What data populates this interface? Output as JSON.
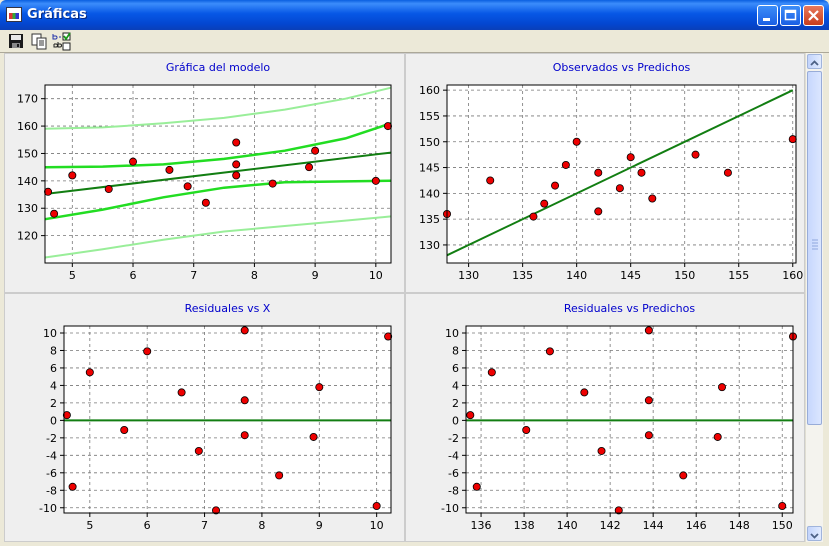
{
  "window": {
    "title": "Gráficas"
  },
  "toolbar": {
    "buttons": [
      "save-icon",
      "copy-icon",
      "labels-toggle-icon"
    ]
  },
  "colors": {
    "title_text": "#0000cc",
    "panel_bg": "#efefef",
    "border": "#cccccc",
    "point_fill": "#ee0000",
    "fit_line": "#127e12",
    "conf_band": "#22dd22",
    "pred_band": "#99ee99",
    "grid": "#777777"
  },
  "chart_data": [
    {
      "type": "scatter",
      "title": "Gráfica del modelo",
      "xlim": [
        4.55,
        10.25
      ],
      "ylim": [
        110,
        175
      ],
      "xticks": [
        5,
        6,
        7,
        8,
        9,
        10
      ],
      "yticks": [
        120,
        130,
        140,
        150,
        160,
        170
      ],
      "points": [
        [
          4.6,
          136
        ],
        [
          4.7,
          128
        ],
        [
          5.0,
          142
        ],
        [
          5.6,
          137
        ],
        [
          6.0,
          147
        ],
        [
          6.6,
          144
        ],
        [
          6.9,
          138
        ],
        [
          7.2,
          132
        ],
        [
          7.7,
          154
        ],
        [
          7.7,
          146
        ],
        [
          7.7,
          142
        ],
        [
          8.3,
          139
        ],
        [
          8.9,
          145
        ],
        [
          9.0,
          151
        ],
        [
          10.0,
          140
        ],
        [
          10.2,
          160
        ]
      ],
      "series": [
        {
          "role": "fit",
          "x": [
            4.55,
            10.25
          ],
          "y": [
            135.2,
            150.3
          ]
        },
        {
          "role": "conf-upper",
          "x": [
            4.55,
            5.5,
            6.5,
            7.5,
            8.5,
            9.5,
            10.25
          ],
          "y": [
            145,
            145.2,
            146,
            148,
            151,
            155.5,
            161
          ]
        },
        {
          "role": "conf-lower",
          "x": [
            4.55,
            5.5,
            6.5,
            7.5,
            8.5,
            9.5,
            10.25
          ],
          "y": [
            126,
            129.5,
            134,
            137.5,
            139.5,
            139.8,
            140
          ]
        },
        {
          "role": "pred-upper",
          "x": [
            4.55,
            5.5,
            6.5,
            7.5,
            8.5,
            9.5,
            10.25
          ],
          "y": [
            159,
            159.5,
            161,
            163,
            166,
            170,
            174
          ]
        },
        {
          "role": "pred-lower",
          "x": [
            4.55,
            5.5,
            6.5,
            7.5,
            8.5,
            9.5,
            10.25
          ],
          "y": [
            112,
            115,
            118.5,
            121.5,
            123.5,
            125.5,
            127
          ]
        }
      ]
    },
    {
      "type": "scatter",
      "title": "Observados vs Predichos",
      "xlim": [
        128,
        160.3
      ],
      "ylim": [
        126.5,
        161
      ],
      "xticks": [
        130,
        135,
        140,
        145,
        150,
        155,
        160
      ],
      "yticks": [
        130,
        135,
        140,
        145,
        150,
        155,
        160
      ],
      "points": [
        [
          128,
          136
        ],
        [
          132,
          142.5
        ],
        [
          136,
          135.5
        ],
        [
          137,
          138
        ],
        [
          138,
          141.5
        ],
        [
          139,
          145.5
        ],
        [
          140,
          150
        ],
        [
          142,
          136.5
        ],
        [
          142,
          144
        ],
        [
          144,
          141
        ],
        [
          145,
          147
        ],
        [
          146,
          144
        ],
        [
          147,
          139
        ],
        [
          151,
          147.5
        ],
        [
          154,
          144
        ],
        [
          160,
          150.5
        ]
      ],
      "series": [
        {
          "role": "identity",
          "x": [
            128,
            160
          ],
          "y": [
            128,
            160
          ]
        }
      ]
    },
    {
      "type": "scatter",
      "title": "Residuales vs X",
      "xlim": [
        4.55,
        10.25
      ],
      "ylim": [
        -10.6,
        10.8
      ],
      "xticks": [
        5,
        6,
        7,
        8,
        9,
        10
      ],
      "yticks": [
        -10,
        -8,
        -6,
        -4,
        -2,
        0,
        2,
        4,
        6,
        8,
        10
      ],
      "points": [
        [
          4.6,
          0.6
        ],
        [
          4.7,
          -7.6
        ],
        [
          5.0,
          5.5
        ],
        [
          5.6,
          -1.1
        ],
        [
          6.0,
          7.9
        ],
        [
          6.6,
          3.2
        ],
        [
          6.9,
          -3.5
        ],
        [
          7.2,
          -10.3
        ],
        [
          7.7,
          10.3
        ],
        [
          7.7,
          2.3
        ],
        [
          7.7,
          -1.7
        ],
        [
          8.3,
          -6.3
        ],
        [
          8.9,
          -1.9
        ],
        [
          9.0,
          3.8
        ],
        [
          10.0,
          -9.8
        ],
        [
          10.2,
          9.6
        ]
      ],
      "series": [
        {
          "role": "zero",
          "x": [
            4.55,
            10.25
          ],
          "y": [
            0,
            0
          ]
        }
      ]
    },
    {
      "type": "scatter",
      "title": "Residuales vs Predichos",
      "xlim": [
        135.3,
        150.5
      ],
      "ylim": [
        -10.6,
        10.8
      ],
      "xticks": [
        136,
        138,
        140,
        142,
        144,
        146,
        148,
        150
      ],
      "yticks": [
        -10,
        -8,
        -6,
        -4,
        -2,
        0,
        2,
        4,
        6,
        8,
        10
      ],
      "points": [
        [
          135.5,
          0.6
        ],
        [
          135.8,
          -7.6
        ],
        [
          136.5,
          5.5
        ],
        [
          138.1,
          -1.1
        ],
        [
          139.2,
          7.9
        ],
        [
          140.8,
          3.2
        ],
        [
          141.6,
          -3.5
        ],
        [
          142.4,
          -10.3
        ],
        [
          143.8,
          10.3
        ],
        [
          143.8,
          2.3
        ],
        [
          143.8,
          -1.7
        ],
        [
          145.4,
          -6.3
        ],
        [
          147.0,
          -1.9
        ],
        [
          147.2,
          3.8
        ],
        [
          150.0,
          -9.8
        ],
        [
          150.5,
          9.6
        ]
      ],
      "series": [
        {
          "role": "zero",
          "x": [
            135.3,
            150.5
          ],
          "y": [
            0,
            0
          ]
        }
      ]
    }
  ]
}
